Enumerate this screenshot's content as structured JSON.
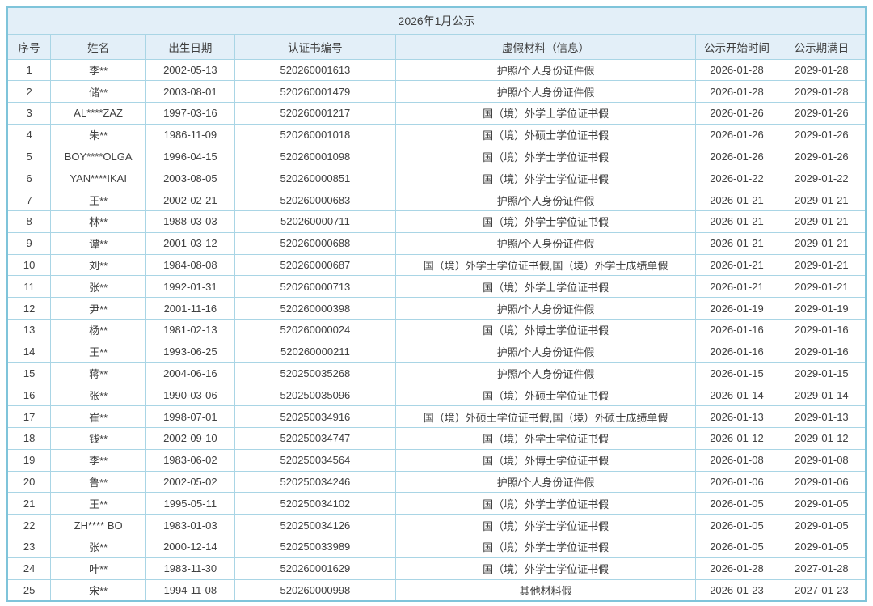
{
  "page": {
    "title": "2026年1月公示"
  },
  "colors": {
    "border_outer": "#7fc4da",
    "border_inner": "#a9d5e5",
    "header_bg": "#e3eff8",
    "row_bg": "#ffffff",
    "text": "#404040"
  },
  "table": {
    "title": "2026年1月公示",
    "columns": [
      "序号",
      "姓名",
      "出生日期",
      "认证书编号",
      "虚假材料（信息）",
      "公示开始时间",
      "公示期满日"
    ],
    "rows": [
      [
        "1",
        "李**",
        "2002-05-13",
        "520260001613",
        "护照/个人身份证件假",
        "2026-01-28",
        "2029-01-28"
      ],
      [
        "2",
        "储**",
        "2003-08-01",
        "520260001479",
        "护照/个人身份证件假",
        "2026-01-28",
        "2029-01-28"
      ],
      [
        "3",
        "AL****ZAZ",
        "1997-03-16",
        "520260001217",
        "国（境）外学士学位证书假",
        "2026-01-26",
        "2029-01-26"
      ],
      [
        "4",
        "朱**",
        "1986-11-09",
        "520260001018",
        "国（境）外硕士学位证书假",
        "2026-01-26",
        "2029-01-26"
      ],
      [
        "5",
        "BOY****OLGA",
        "1996-04-15",
        "520260001098",
        "国（境）外学士学位证书假",
        "2026-01-26",
        "2029-01-26"
      ],
      [
        "6",
        "YAN****IKAI",
        "2003-08-05",
        "520260000851",
        "国（境）外学士学位证书假",
        "2026-01-22",
        "2029-01-22"
      ],
      [
        "7",
        "王**",
        "2002-02-21",
        "520260000683",
        "护照/个人身份证件假",
        "2026-01-21",
        "2029-01-21"
      ],
      [
        "8",
        "林**",
        "1988-03-03",
        "520260000711",
        "国（境）外学士学位证书假",
        "2026-01-21",
        "2029-01-21"
      ],
      [
        "9",
        "谭**",
        "2001-03-12",
        "520260000688",
        "护照/个人身份证件假",
        "2026-01-21",
        "2029-01-21"
      ],
      [
        "10",
        "刘**",
        "1984-08-08",
        "520260000687",
        "国（境）外学士学位证书假,国（境）外学士成绩单假",
        "2026-01-21",
        "2029-01-21"
      ],
      [
        "11",
        "张**",
        "1992-01-31",
        "520260000713",
        "国（境）外学士学位证书假",
        "2026-01-21",
        "2029-01-21"
      ],
      [
        "12",
        "尹**",
        "2001-11-16",
        "520260000398",
        "护照/个人身份证件假",
        "2026-01-19",
        "2029-01-19"
      ],
      [
        "13",
        "杨**",
        "1981-02-13",
        "520260000024",
        "国（境）外博士学位证书假",
        "2026-01-16",
        "2029-01-16"
      ],
      [
        "14",
        "王**",
        "1993-06-25",
        "520260000211",
        "护照/个人身份证件假",
        "2026-01-16",
        "2029-01-16"
      ],
      [
        "15",
        "蒋**",
        "2004-06-16",
        "520250035268",
        "护照/个人身份证件假",
        "2026-01-15",
        "2029-01-15"
      ],
      [
        "16",
        "张**",
        "1990-03-06",
        "520250035096",
        "国（境）外硕士学位证书假",
        "2026-01-14",
        "2029-01-14"
      ],
      [
        "17",
        "崔**",
        "1998-07-01",
        "520250034916",
        "国（境）外硕士学位证书假,国（境）外硕士成绩单假",
        "2026-01-13",
        "2029-01-13"
      ],
      [
        "18",
        "钱**",
        "2002-09-10",
        "520250034747",
        "国（境）外学士学位证书假",
        "2026-01-12",
        "2029-01-12"
      ],
      [
        "19",
        "李**",
        "1983-06-02",
        "520250034564",
        "国（境）外博士学位证书假",
        "2026-01-08",
        "2029-01-08"
      ],
      [
        "20",
        "鲁**",
        "2002-05-02",
        "520250034246",
        "护照/个人身份证件假",
        "2026-01-06",
        "2029-01-06"
      ],
      [
        "21",
        "王**",
        "1995-05-11",
        "520250034102",
        "国（境）外学士学位证书假",
        "2026-01-05",
        "2029-01-05"
      ],
      [
        "22",
        "ZH**** BO",
        "1983-01-03",
        "520250034126",
        "国（境）外学士学位证书假",
        "2026-01-05",
        "2029-01-05"
      ],
      [
        "23",
        "张**",
        "2000-12-14",
        "520250033989",
        "国（境）外学士学位证书假",
        "2026-01-05",
        "2029-01-05"
      ],
      [
        "24",
        "叶**",
        "1983-11-30",
        "520260001629",
        "国（境）外学士学位证书假",
        "2026-01-28",
        "2027-01-28"
      ],
      [
        "25",
        "宋**",
        "1994-11-08",
        "520260000998",
        "其他材料假",
        "2026-01-23",
        "2027-01-23"
      ]
    ]
  }
}
